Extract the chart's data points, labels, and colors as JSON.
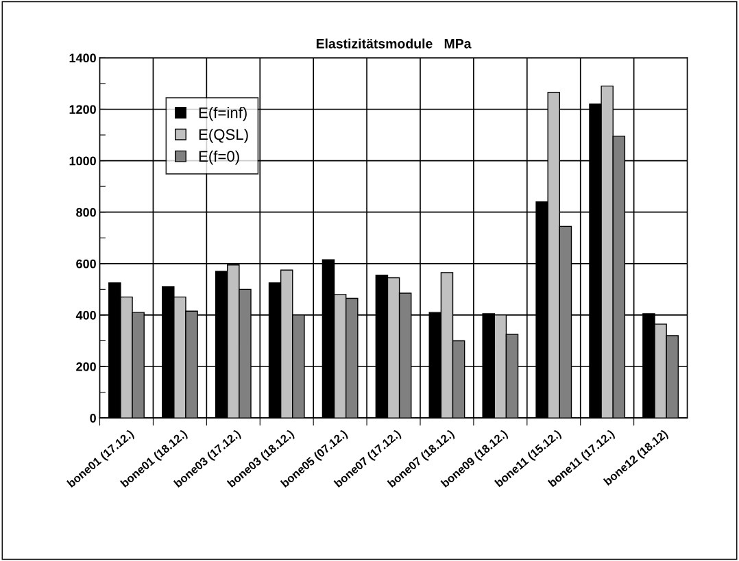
{
  "chart_data": {
    "type": "bar",
    "title": "Elastizitätsmodule   MPa",
    "categories": [
      "bone01 (17.12.)",
      "bone01 (18.12.)",
      "bone03 (17.12.)",
      "bone03 (18.12.)",
      "bone05 (07.12.)",
      "bone07 (17.12.)",
      "bone07 (18.12.)",
      "bone09 (18.12.)",
      "bone11 (15.12.)",
      "bone11 (17.12.)",
      "bone12 (18.12)"
    ],
    "series": [
      {
        "name": "E(f=inf)",
        "color": "#000000",
        "values": [
          525,
          510,
          570,
          525,
          615,
          555,
          410,
          405,
          840,
          1220,
          405
        ]
      },
      {
        "name": "E(QSL)",
        "color": "#c0c0c0",
        "values": [
          470,
          470,
          595,
          575,
          480,
          545,
          565,
          400,
          1265,
          1290,
          365
        ]
      },
      {
        "name": "E(f=0)",
        "color": "#808080",
        "values": [
          410,
          415,
          500,
          400,
          465,
          485,
          300,
          325,
          745,
          1095,
          320
        ]
      }
    ],
    "ylim": [
      0,
      1400
    ],
    "yticks": [
      0,
      {
        "value": 100,
        "label": null
      },
      200,
      {
        "value": 300,
        "label": null
      },
      400,
      {
        "value": 500,
        "label": null
      },
      600,
      {
        "value": 700,
        "label": null
      },
      800,
      {
        "value": 900,
        "label": null
      },
      1000,
      {
        "value": 1100,
        "label": null
      },
      1200,
      {
        "value": 1300,
        "label": null
      },
      1400
    ],
    "grid": true,
    "legend": "top left"
  }
}
